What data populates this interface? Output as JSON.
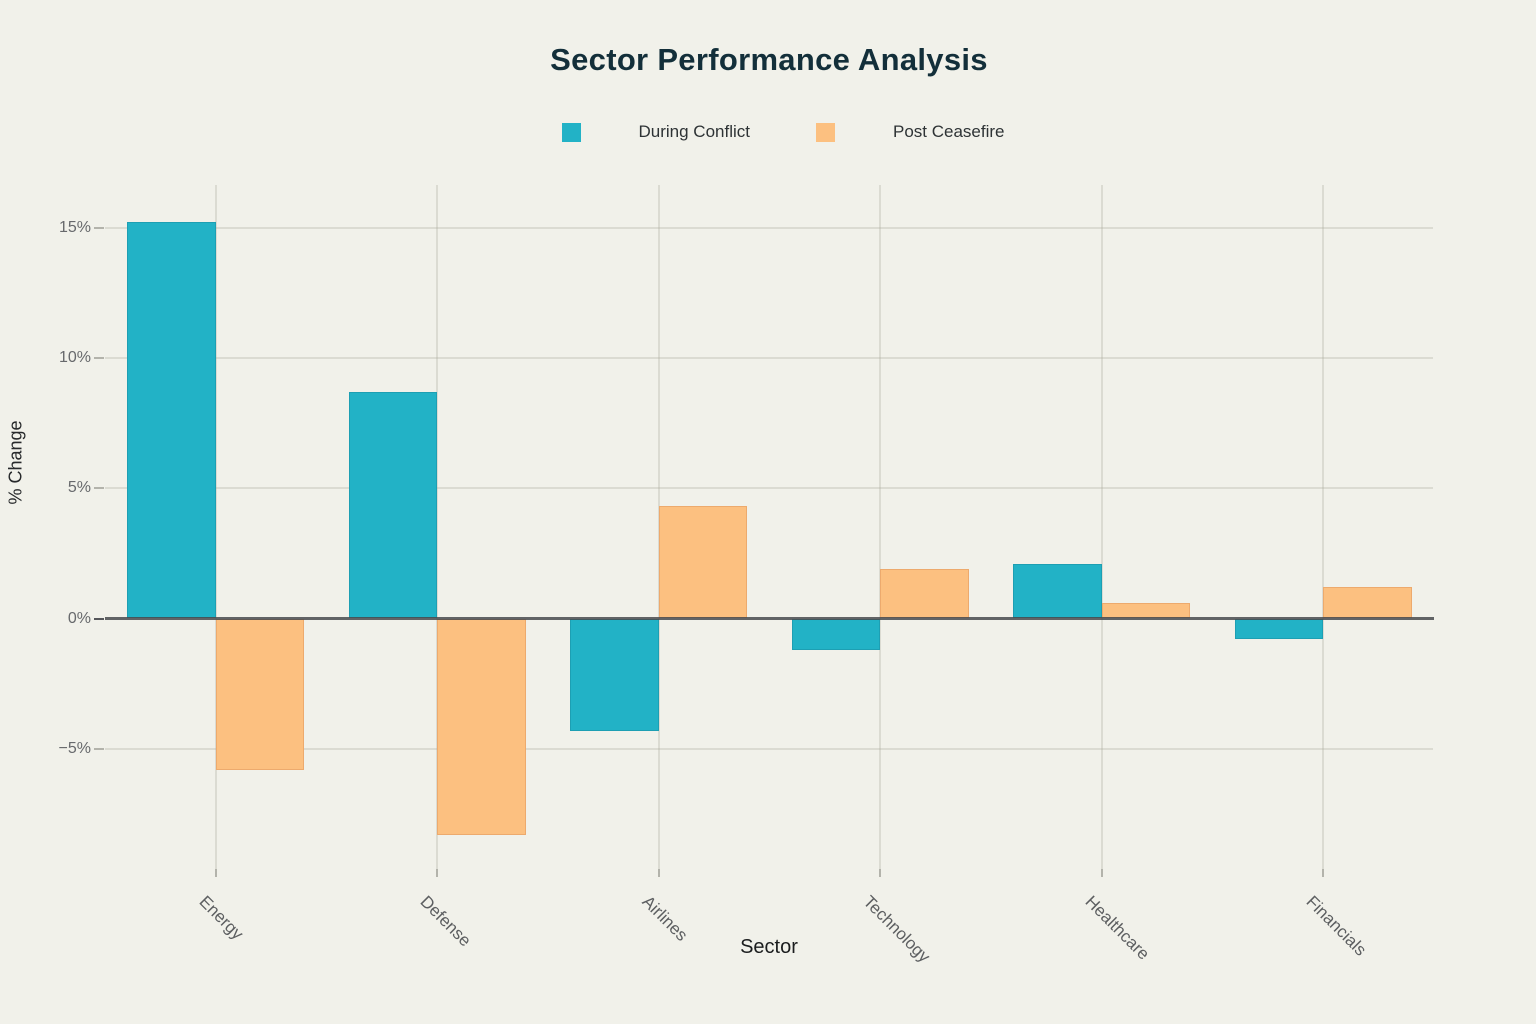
{
  "chart_data": {
    "type": "bar",
    "title": "Sector Performance Analysis",
    "xlabel": "Sector",
    "ylabel": "% Change",
    "categories": [
      "Energy",
      "Defense",
      "Airlines",
      "Technology",
      "Healthcare",
      "Financials"
    ],
    "series": [
      {
        "name": "During Conflict",
        "color": "#22b2c6",
        "edge_color": "#1d9fb3",
        "values": [
          15.2,
          8.7,
          -4.3,
          -1.2,
          2.1,
          -0.8
        ]
      },
      {
        "name": "Post Ceasefire",
        "color": "#fcc080",
        "edge_color": "#edaa6d",
        "values": [
          -5.8,
          -8.3,
          4.3,
          1.9,
          0.6,
          1.2
        ]
      }
    ],
    "yticks": [
      15,
      10,
      5,
      0,
      -5
    ],
    "ytick_labels": [
      "15%",
      "10%",
      "5%",
      "0%",
      "−5%"
    ],
    "ylim": [
      -9.7,
      16.6
    ],
    "grid": true,
    "legend_position": "top-center",
    "background_color": "#f1f1ea",
    "zero_line_color": "#55565a"
  }
}
